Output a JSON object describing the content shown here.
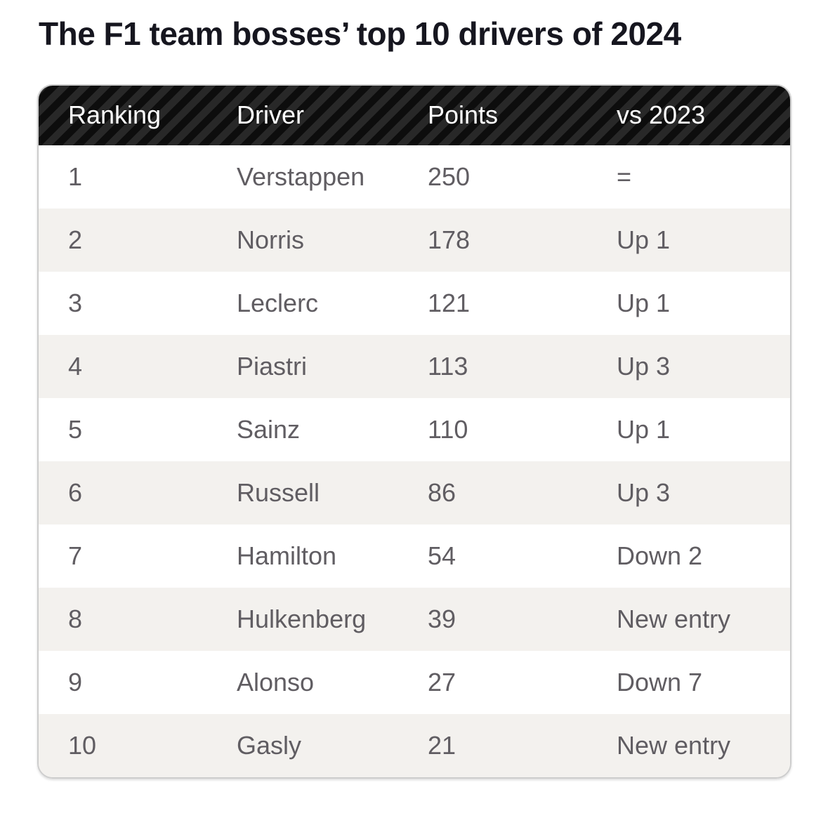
{
  "page": {
    "background_color": "#ffffff",
    "title_color": "#16161f",
    "row_text_color": "#605d62",
    "alt_row_color": "#f3f1ee",
    "header_stripe_dark": "#0d0d0d",
    "header_stripe_light": "#282828",
    "header_text_color": "#ffffff",
    "card_border_color": "#cdcdcd"
  },
  "chart_data": {
    "type": "table",
    "title": "The F1 team bosses’ top 10 drivers of 2024",
    "columns": [
      "Ranking",
      "Driver",
      "Points",
      "vs 2023"
    ],
    "rows": [
      [
        "1",
        "Verstappen",
        "250",
        "="
      ],
      [
        "2",
        "Norris",
        "178",
        "Up 1"
      ],
      [
        "3",
        "Leclerc",
        "121",
        "Up 1"
      ],
      [
        "4",
        "Piastri",
        "113",
        "Up 3"
      ],
      [
        "5",
        "Sainz",
        "110",
        "Up 1"
      ],
      [
        "6",
        "Russell",
        "86",
        "Up 3"
      ],
      [
        "7",
        "Hamilton",
        "54",
        "Down 2"
      ],
      [
        "8",
        "Hulkenberg",
        "39",
        "New entry"
      ],
      [
        "9",
        "Alonso",
        "27",
        "Down 7"
      ],
      [
        "10",
        "Gasly",
        "21",
        "New entry"
      ]
    ]
  }
}
